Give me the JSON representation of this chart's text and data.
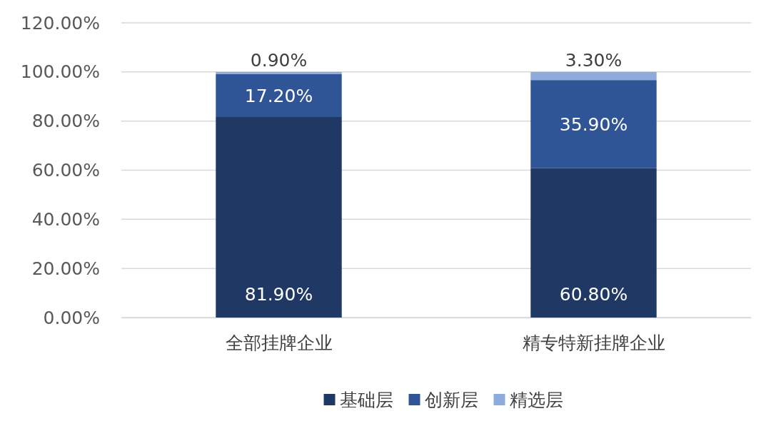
{
  "chart_data": {
    "type": "bar",
    "stacked": true,
    "categories": [
      "全部挂牌企业",
      "精专特新挂牌企业"
    ],
    "series": [
      {
        "name": "基础层",
        "color": "#203864",
        "values": [
          81.9,
          60.8
        ],
        "value_labels": [
          "81.90%",
          "60.80%"
        ]
      },
      {
        "name": "创新层",
        "color": "#2f5597",
        "values": [
          17.2,
          35.9
        ],
        "value_labels": [
          "17.20%",
          "35.90%"
        ]
      },
      {
        "name": "精选层",
        "color": "#8faadc",
        "values": [
          0.9,
          3.3
        ],
        "value_labels": [
          "0.90%",
          "3.30%"
        ]
      }
    ],
    "ylim": [
      0,
      120
    ],
    "yticks": [
      {
        "value": 0,
        "label": "0.00%"
      },
      {
        "value": 20,
        "label": "20.00%"
      },
      {
        "value": 40,
        "label": "40.00%"
      },
      {
        "value": 60,
        "label": "60.00%"
      },
      {
        "value": 80,
        "label": "80.00%"
      },
      {
        "value": 100,
        "label": "100.00%"
      },
      {
        "value": 120,
        "label": "120.00%"
      }
    ],
    "grid": "y",
    "legend": "bottom"
  }
}
